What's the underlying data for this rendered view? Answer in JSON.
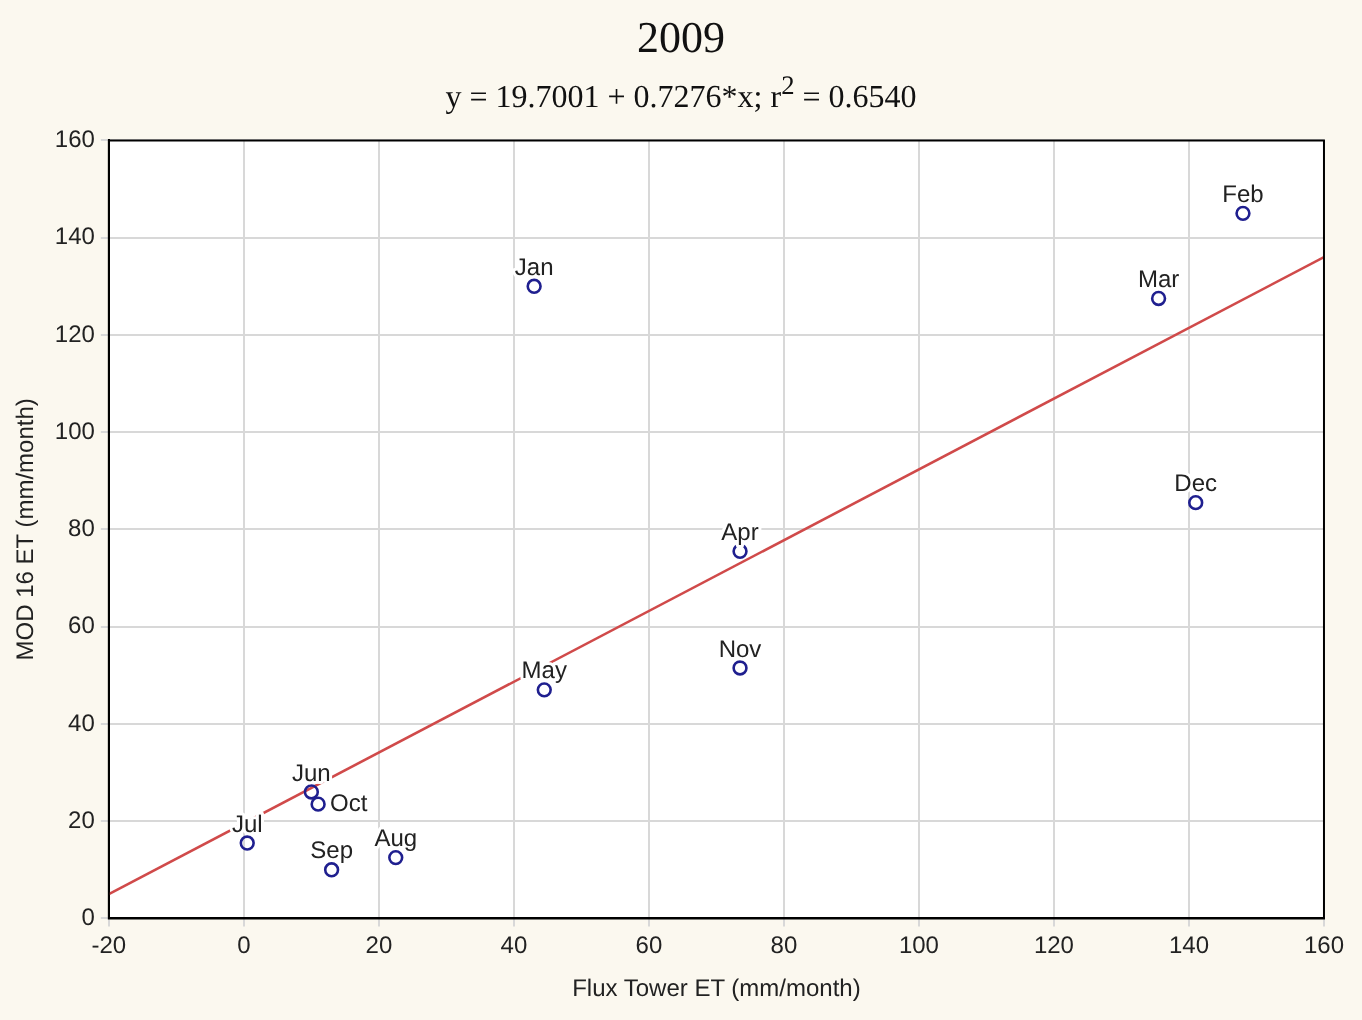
{
  "chart_data": {
    "type": "scatter",
    "title": "2009",
    "subtitle": "y = 19.7001 + 0.7276*x; r$^{2}$ = 0.6540",
    "xlabel": "Flux Tower ET (mm/month)",
    "ylabel": "MOD 16 ET (mm/month)",
    "xlim": [
      -20,
      160
    ],
    "ylim": [
      0,
      160
    ],
    "xticks": [
      -20,
      0,
      20,
      40,
      60,
      80,
      100,
      120,
      140,
      160
    ],
    "yticks": [
      0,
      20,
      40,
      60,
      80,
      100,
      120,
      140,
      160
    ],
    "grid": true,
    "legend": false,
    "series": [
      {
        "marker": "circle",
        "color": "#1f1f8f",
        "x": [
          43,
          148,
          135.5,
          73.5,
          44.5,
          10,
          0.5,
          22.5,
          13,
          11,
          73.5,
          141
        ],
        "values": [
          130,
          145,
          127.5,
          75.5,
          47,
          26,
          15.5,
          12.5,
          10,
          23.5,
          51.5,
          85.5
        ]
      },
      {
        "type": "line",
        "color": "#d04a4a",
        "x": [
          -20,
          160
        ],
        "values": [
          5,
          136
        ]
      }
    ],
    "annotations": [
      {
        "text": "Jan",
        "x": 43,
        "y": 130
      },
      {
        "text": "Feb",
        "x": 148,
        "y": 145
      },
      {
        "text": "Mar",
        "x": 135.5,
        "y": 127.5
      },
      {
        "text": "Apr",
        "x": 73.5,
        "y": 75.5
      },
      {
        "text": "May",
        "x": 44.5,
        "y": 47
      },
      {
        "text": "Jun",
        "x": 10,
        "y": 26
      },
      {
        "text": "Jul",
        "x": 0.5,
        "y": 15.5
      },
      {
        "text": "Aug",
        "x": 22.5,
        "y": 12.5
      },
      {
        "text": "Sep",
        "x": 13,
        "y": 10
      },
      {
        "text": "Oct",
        "x": 11,
        "y": 23.5
      },
      {
        "text": "Nov",
        "x": 73.5,
        "y": 51.5
      },
      {
        "text": "Dec",
        "x": 141,
        "y": 85.5
      }
    ]
  }
}
